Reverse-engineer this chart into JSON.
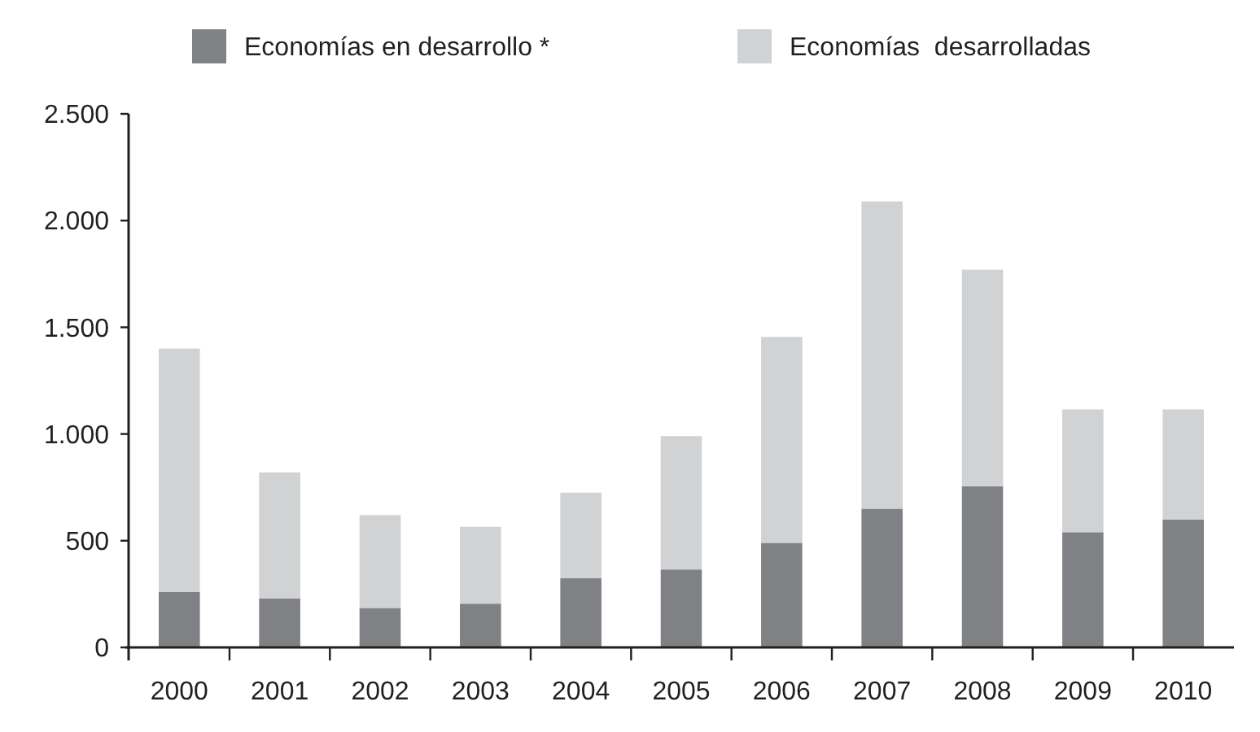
{
  "chart_data": {
    "type": "bar",
    "stacked": true,
    "categories": [
      "2000",
      "2001",
      "2002",
      "2003",
      "2004",
      "2005",
      "2006",
      "2007",
      "2008",
      "2009",
      "2010"
    ],
    "series": [
      {
        "name": "Economías en desarrollo *",
        "color": "#808184",
        "values": [
          260,
          230,
          185,
          205,
          325,
          365,
          490,
          650,
          755,
          540,
          600
        ]
      },
      {
        "name": "Economías  desarrolladas",
        "color": "#d1d2d4",
        "values": [
          1140,
          590,
          435,
          360,
          400,
          625,
          965,
          1440,
          1015,
          575,
          515
        ]
      }
    ],
    "ylim": [
      0,
      2500
    ],
    "yticks": [
      {
        "value": 0,
        "label": "0"
      },
      {
        "value": 500,
        "label": "500"
      },
      {
        "value": 1000,
        "label": "1.000"
      },
      {
        "value": 1500,
        "label": "1.500"
      },
      {
        "value": 2000,
        "label": "2.000"
      },
      {
        "value": 2500,
        "label": "2.500"
      }
    ],
    "grid": false,
    "legend": "top"
  }
}
